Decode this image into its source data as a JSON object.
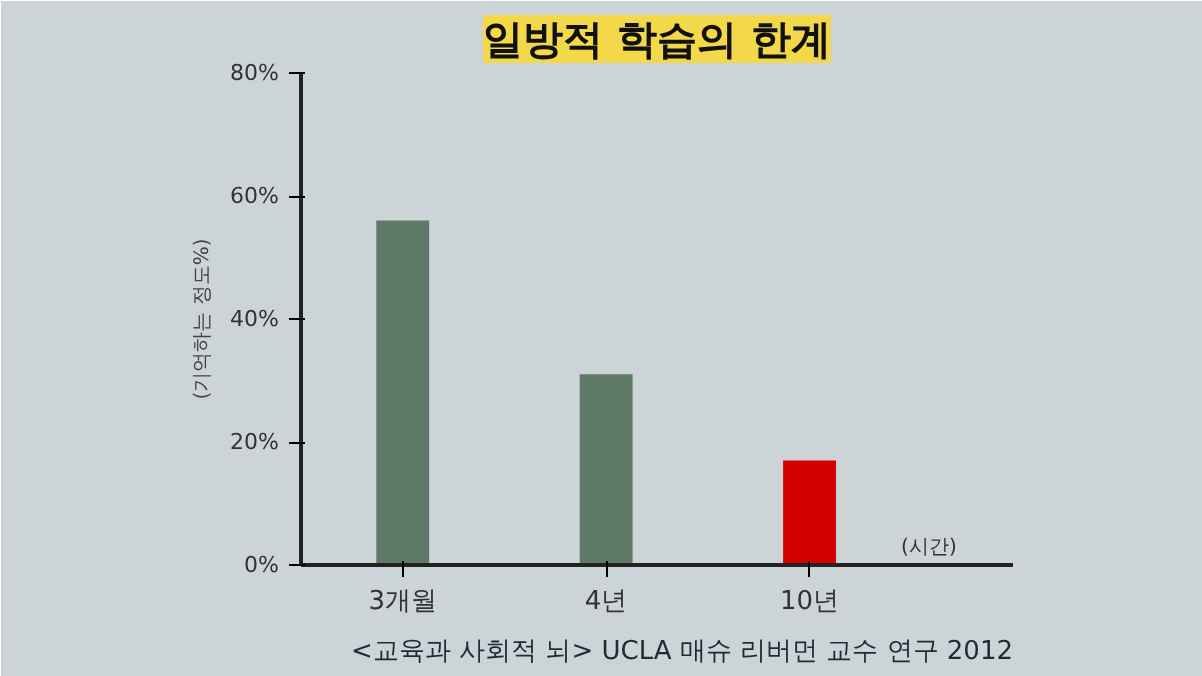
{
  "chart_data": {
    "type": "bar",
    "title": "일방적 학습의 한계",
    "ylabel": "(기억하는 정도%)",
    "xlabel": "(시간)",
    "categories": [
      "3개월",
      "4년",
      "10년"
    ],
    "values": [
      56,
      31,
      17
    ],
    "colors": [
      "#5e7a66",
      "#5e7a66",
      "#d40000"
    ],
    "ylim": [
      0,
      80
    ],
    "yticks": [
      {
        "value": 0,
        "label": "0%"
      },
      {
        "value": 20,
        "label": "20%"
      },
      {
        "value": 40,
        "label": "40%"
      },
      {
        "value": 60,
        "label": "60%"
      },
      {
        "value": 80,
        "label": "80%"
      }
    ],
    "grid": false,
    "annotations": [
      "<교육과 사회적 뇌> UCLA 매슈 리버먼 교수 연구 2012"
    ]
  }
}
